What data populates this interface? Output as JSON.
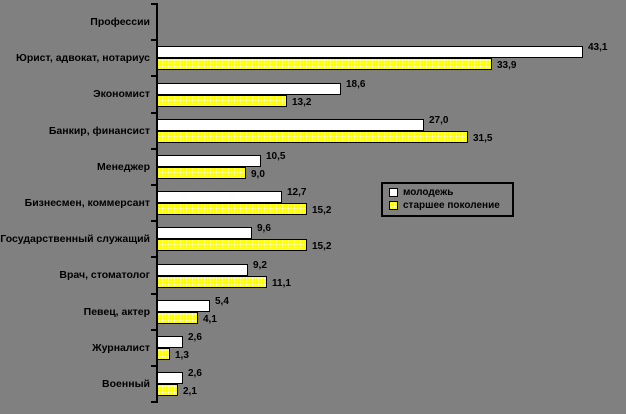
{
  "chart_data": {
    "type": "bar",
    "orientation": "horizontal",
    "title": "",
    "ylabel": "Профессии",
    "xlabel": "",
    "grid": false,
    "background_color": "#808080",
    "axis_color": "#000000",
    "decimal_separator": ",",
    "value_label_decimals": 1,
    "xlim": [
      0,
      43.5
    ],
    "categories": [
      "Юрист, адвокат, нотариус",
      "Экономист",
      "Банкир, финансист",
      "Менеджер",
      "Бизнесмен, коммерсант",
      "Государственный служащий",
      "Врач, стоматолог",
      "Певец, актер",
      "Журналист",
      "Военный"
    ],
    "series": [
      {
        "name": "молодежь",
        "color": "#ffffff",
        "pattern": "solid",
        "values": [
          43.1,
          18.6,
          27.0,
          10.5,
          12.7,
          9.6,
          9.2,
          5.4,
          2.6,
          2.6
        ]
      },
      {
        "name": "старшее поколение",
        "color": "#ffff00",
        "pattern": "dotted",
        "values": [
          33.9,
          13.2,
          31.5,
          9.0,
          15.2,
          15.2,
          11.1,
          4.1,
          1.3,
          2.1
        ]
      }
    ],
    "legend": {
      "position": "center-right",
      "entries": [
        "молодежь",
        "старшее поколение"
      ]
    }
  }
}
